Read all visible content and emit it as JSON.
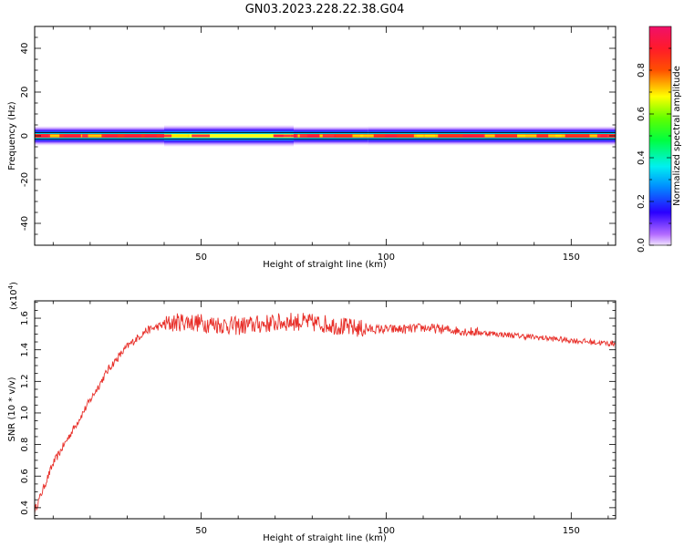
{
  "title": "GN03.2023.228.22.38.G04",
  "colors": {
    "snr_line": "#e8302a",
    "axis": "#000000"
  },
  "chart_data": [
    {
      "type": "heatmap",
      "xlabel": "Height of straight line (km)",
      "ylabel": "Frequency (Hz)",
      "xlim": [
        5,
        162
      ],
      "ylim": [
        -50,
        50
      ],
      "x_ticks": [
        50,
        100,
        150
      ],
      "y_ticks": [
        -40,
        -20,
        0,
        20,
        40
      ],
      "colorbar": {
        "label": "Normalized spectral amplitude",
        "range": [
          0,
          1
        ],
        "ticks": [
          "0.0",
          "0.2",
          "0.4",
          "0.6",
          "0.8"
        ],
        "colormap": "rainbow (purple-blue-cyan-green-yellow-red-magenta)"
      },
      "band_segments": [
        {
          "x": [
            5,
            40
          ],
          "peak": 0.85
        },
        {
          "x": [
            40,
            75
          ],
          "peak": 0.55
        },
        {
          "x": [
            75,
            95
          ],
          "peak": 0.9
        },
        {
          "x": [
            95,
            162
          ],
          "peak": 0.85
        }
      ]
    },
    {
      "type": "line",
      "xlabel": "Height of straight line (km)",
      "ylabel": "SNR (10 * v/v)",
      "scale_label": "(x10",
      "scale_exp": "4",
      "xlim": [
        5,
        162
      ],
      "ylim": [
        0.33,
        1.71
      ],
      "x_ticks": [
        50,
        100,
        150
      ],
      "y_ticks": [
        "0.4",
        "0.6",
        "0.8",
        "1.0",
        "1.2",
        "1.4",
        "1.6"
      ],
      "series": [
        {
          "x": [
            5,
            10,
            15,
            20,
            25,
            30,
            35,
            40,
            45,
            50,
            55,
            60,
            65,
            70,
            75,
            80,
            85,
            90,
            95,
            100,
            105,
            110,
            115,
            120,
            125,
            130,
            135,
            140,
            145,
            150,
            155,
            160,
            162
          ],
          "y": [
            0.38,
            0.68,
            0.88,
            1.08,
            1.28,
            1.42,
            1.52,
            1.56,
            1.58,
            1.57,
            1.56,
            1.55,
            1.56,
            1.57,
            1.58,
            1.57,
            1.56,
            1.54,
            1.53,
            1.53,
            1.53,
            1.54,
            1.53,
            1.52,
            1.51,
            1.5,
            1.49,
            1.48,
            1.47,
            1.46,
            1.45,
            1.44,
            1.44
          ]
        }
      ]
    }
  ]
}
